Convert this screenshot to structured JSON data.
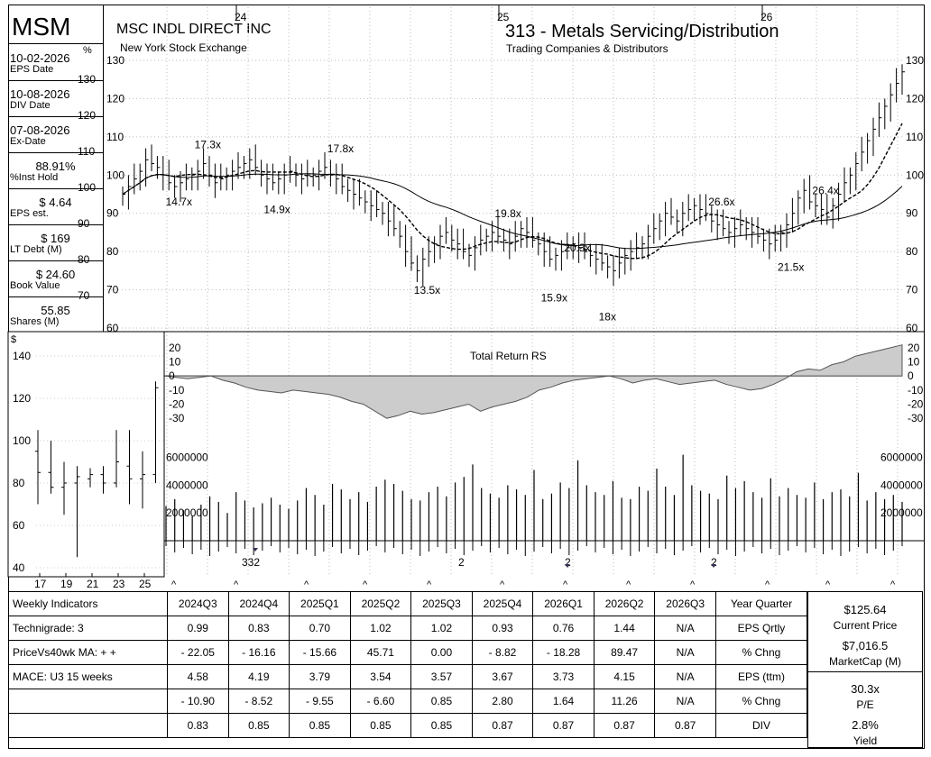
{
  "header": {
    "ticker": "MSM",
    "company": "MSC INDL DIRECT INC",
    "exchange": "New York Stock Exchange",
    "group": "313 - Metals Servicing/Distribution",
    "industry": "Trading Companies & Distributors",
    "year_labels": [
      "24",
      "25",
      "26"
    ]
  },
  "sidebar": {
    "items": [
      {
        "value": "10-02-2026",
        "label": "EPS Date"
      },
      {
        "value": "10-08-2026",
        "label": "DIV Date"
      },
      {
        "value": "07-08-2026",
        "label": "Ex-Date"
      },
      {
        "value": "88.91%",
        "label": "%Inst Hold"
      },
      {
        "value": "$ 4.64",
        "label": "EPS est."
      },
      {
        "value": "$ 169",
        "label": "LT Debt (M)"
      },
      {
        "value": "$ 24.60",
        "label": "Book Value"
      },
      {
        "value": "55.85",
        "label": "Shares (M)"
      }
    ],
    "pct_symbol": "%"
  },
  "chart_data": [
    {
      "type": "ohlc",
      "name": "weekly price",
      "left_ticks": [
        "130",
        "120",
        "110",
        "100",
        "90",
        "80",
        "70",
        "60"
      ],
      "right_ticks": [
        "130",
        "120",
        "110",
        "100",
        "90",
        "80",
        "70",
        "60"
      ],
      "ylim": [
        60,
        130
      ],
      "pe_annotations": [
        {
          "label": "17.3x",
          "week": 14,
          "price": 107
        },
        {
          "label": "14.7x",
          "week": 9,
          "price": 92
        },
        {
          "label": "14.9x",
          "week": 26,
          "price": 90
        },
        {
          "label": "17.8x",
          "week": 37,
          "price": 106
        },
        {
          "label": "13.5x",
          "week": 52,
          "price": 69
        },
        {
          "label": "19.8x",
          "week": 66,
          "price": 89
        },
        {
          "label": "20.3x",
          "week": 78,
          "price": 80
        },
        {
          "label": "15.9x",
          "week": 74,
          "price": 67
        },
        {
          "label": "18x",
          "week": 84,
          "price": 62
        },
        {
          "label": "26.6x",
          "week": 103,
          "price": 92
        },
        {
          "label": "21.5x",
          "week": 115,
          "price": 75
        },
        {
          "label": "26.4x",
          "week": 121,
          "price": 95
        }
      ],
      "close_weekly": [
        95,
        97,
        99,
        101,
        104,
        103,
        102,
        100,
        98,
        97,
        98,
        99,
        100,
        101,
        103,
        100,
        98,
        99,
        100,
        101,
        102,
        103,
        104,
        102,
        100,
        99,
        98,
        99,
        100,
        101,
        100,
        99,
        100,
        100,
        101,
        102,
        100,
        99,
        97,
        96,
        95,
        94,
        93,
        92,
        91,
        90,
        88,
        86,
        84,
        80,
        77,
        75,
        78,
        80,
        82,
        84,
        85,
        83,
        82,
        80,
        79,
        81,
        83,
        84,
        85,
        84,
        83,
        82,
        84,
        86,
        85,
        83,
        82,
        80,
        78,
        79,
        80,
        81,
        82,
        81,
        80,
        79,
        78,
        77,
        76,
        75,
        77,
        79,
        80,
        81,
        82,
        84,
        86,
        88,
        90,
        89,
        88,
        90,
        91,
        92,
        91,
        90,
        88,
        87,
        86,
        85,
        86,
        87,
        86,
        85,
        84,
        83,
        82,
        83,
        85,
        87,
        90,
        94,
        96,
        93,
        92,
        91,
        89,
        92,
        95,
        98,
        100,
        103,
        106,
        109,
        112,
        115,
        118,
        121,
        124,
        127
      ]
    },
    {
      "type": "ohlc",
      "name": "monthly price inset",
      "ylabel": "$",
      "ticks": [
        "140",
        "120",
        "100",
        "80",
        "60",
        "40"
      ],
      "x_ticks": [
        "17",
        "19",
        "21",
        "23",
        "25"
      ],
      "ylim": [
        40,
        140
      ],
      "ohlc": [
        {
          "o": 95,
          "h": 105,
          "l": 70,
          "c": 85
        },
        {
          "o": 85,
          "h": 100,
          "l": 75,
          "c": 78
        },
        {
          "o": 78,
          "h": 90,
          "l": 65,
          "c": 80
        },
        {
          "o": 80,
          "h": 88,
          "l": 45,
          "c": 83
        },
        {
          "o": 82,
          "h": 87,
          "l": 78,
          "c": 84
        },
        {
          "o": 84,
          "h": 88,
          "l": 75,
          "c": 80
        },
        {
          "o": 80,
          "h": 105,
          "l": 78,
          "c": 90
        },
        {
          "o": 88,
          "h": 105,
          "l": 70,
          "c": 82
        },
        {
          "o": 82,
          "h": 95,
          "l": 68,
          "c": 84
        },
        {
          "o": 84,
          "h": 128,
          "l": 80,
          "c": 125
        }
      ]
    },
    {
      "type": "area",
      "title": "Total Return RS",
      "ticks": [
        "20",
        "10",
        "0",
        "-10",
        "-20",
        "-30"
      ],
      "ylim": [
        -35,
        25
      ],
      "values": [
        0,
        -1,
        -2,
        -1,
        0,
        -3,
        -5,
        -8,
        -10,
        -11,
        -12,
        -10,
        -11,
        -12,
        -13,
        -15,
        -18,
        -20,
        -25,
        -30,
        -28,
        -25,
        -27,
        -26,
        -24,
        -22,
        -20,
        -25,
        -22,
        -20,
        -18,
        -15,
        -10,
        -8,
        -5,
        -3,
        -2,
        -1,
        0,
        -2,
        -5,
        -3,
        -2,
        -4,
        -6,
        -5,
        -4,
        -3,
        -6,
        -8,
        -10,
        -9,
        -6,
        -2,
        3,
        5,
        4,
        8,
        10,
        14,
        16,
        18,
        20,
        22
      ]
    },
    {
      "type": "bar",
      "title": "volume",
      "ticks": [
        "6000000",
        "4000000",
        "2000000"
      ],
      "ylim": [
        0,
        6500000
      ],
      "values": [
        2500000,
        3000000,
        2200000,
        1800000,
        2600000,
        3200000,
        2800000,
        2000000,
        3500000,
        2900000,
        2400000,
        2700000,
        3100000,
        2600000,
        2300000,
        2900000,
        3800000,
        3300000,
        2600000,
        4100000,
        3700000,
        3000000,
        3500000,
        2800000,
        3900000,
        4400000,
        4100000,
        3600000,
        3000000,
        2900000,
        3500000,
        3900000,
        3200000,
        4200000,
        4600000,
        5500000,
        3800000,
        3400000,
        3100000,
        4000000,
        3700000,
        3300000,
        5100000,
        3000000,
        3400000,
        4200000,
        3800000,
        5800000,
        4000000,
        3500000,
        3300000,
        4300000,
        3100000,
        3000000,
        3900000,
        3600000,
        5200000,
        3900000,
        3300000,
        6200000,
        4000000,
        3600000,
        3400000,
        3000000,
        4700000,
        3800000,
        4300000,
        3500000,
        3100000,
        4500000,
        3200000,
        3800000,
        3300000,
        3100000,
        4200000,
        3000000,
        3500000,
        3700000,
        3200000,
        4900000,
        2900000,
        3500000,
        3000000,
        3300000,
        2800000
      ]
    }
  ],
  "markers": {
    "split_label": "332",
    "count_labels": [
      "2",
      "2",
      "2"
    ],
    "caret": "^"
  },
  "table": {
    "headers": [
      "Weekly Indicators",
      "2024Q3",
      "2024Q4",
      "2025Q1",
      "2025Q2",
      "2025Q3",
      "2025Q4",
      "2026Q1",
      "2026Q2",
      "2026Q3",
      "Year Quarter"
    ],
    "rows": [
      {
        "label": "Technigrade: 3",
        "values": [
          "0.99",
          "0.83",
          "0.70",
          "1.02",
          "1.02",
          "0.93",
          "0.76",
          "1.44",
          "N/A"
        ],
        "metric": "EPS Qrtly"
      },
      {
        "label": "PriceVs40wk MA:  + +",
        "values": [
          "- 22.05",
          "- 16.16",
          "- 15.66",
          "45.71",
          "0.00",
          "- 8.82",
          "- 18.28",
          "89.47",
          "N/A"
        ],
        "metric": "% Chng"
      },
      {
        "label": "MACE: U3  15 weeks",
        "values": [
          "4.58",
          "4.19",
          "3.79",
          "3.54",
          "3.57",
          "3.67",
          "3.73",
          "4.15",
          "N/A"
        ],
        "metric": "EPS (ttm)"
      },
      {
        "label": "",
        "values": [
          "- 10.90",
          "- 8.52",
          "- 9.55",
          "- 6.60",
          "0.85",
          "2.80",
          "1.64",
          "11.26",
          "N/A"
        ],
        "metric": "% Chng"
      },
      {
        "label": "",
        "values": [
          "0.83",
          "0.85",
          "0.85",
          "0.85",
          "0.85",
          "0.87",
          "0.87",
          "0.87",
          "0.87"
        ],
        "metric": "DIV"
      }
    ]
  },
  "right_panel": {
    "price": "$125.64",
    "price_label": "Current Price",
    "mcap": "$7,016.5",
    "mcap_label": "MarketCap (M)",
    "pe": "30.3x",
    "pe_label": "P/E",
    "yield": "2.8%",
    "yield_label": "Yield"
  }
}
